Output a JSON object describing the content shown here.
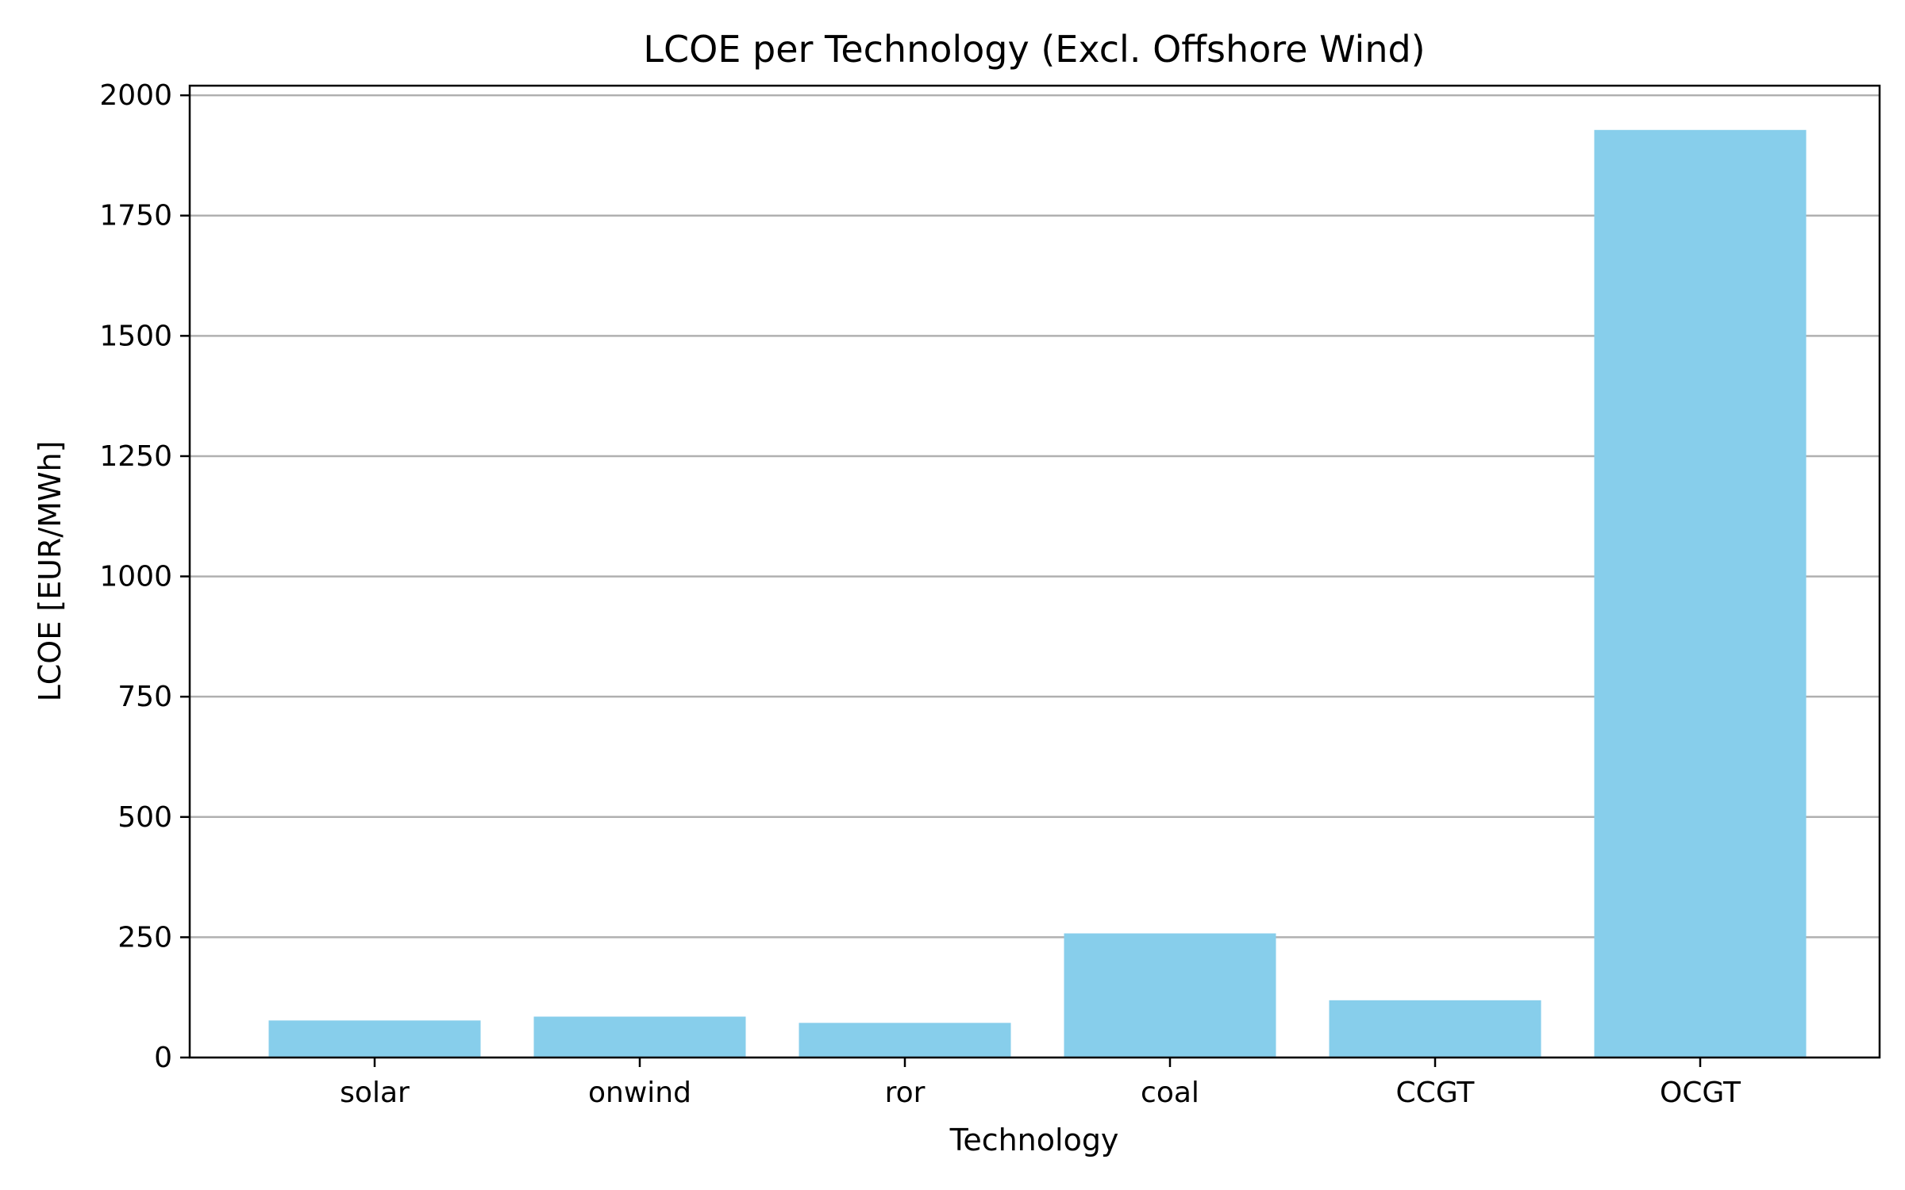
{
  "chart_data": {
    "type": "bar",
    "title": "LCOE per Technology (Excl. Offshore Wind)",
    "xlabel": "Technology",
    "ylabel": "LCOE [EUR/MWh]",
    "categories": [
      "solar",
      "onwind",
      "ror",
      "coal",
      "CCGT",
      "OCGT"
    ],
    "values": [
      77,
      85,
      72,
      258,
      119,
      1928
    ],
    "ylim": [
      0,
      2020
    ],
    "yticks": [
      0,
      250,
      500,
      750,
      1000,
      1250,
      1500,
      1750,
      2000
    ],
    "grid": "y",
    "bar_color": "#87CEEB",
    "legend": "none"
  }
}
